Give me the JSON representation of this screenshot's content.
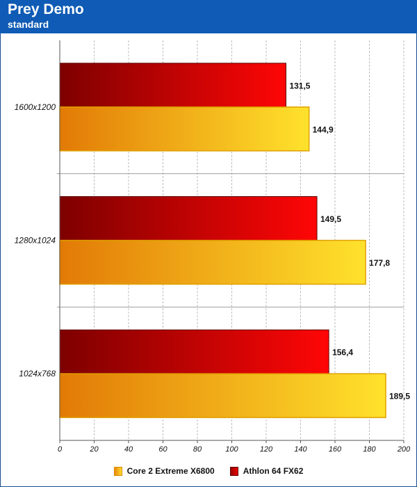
{
  "header": {
    "title": "Prey Demo",
    "subtitle": "standard"
  },
  "colors": {
    "header_bg": "#0f5bb5",
    "core_start": "#e27a06",
    "core_end": "#ffe22c",
    "athlon_start": "#7e0000",
    "athlon_end": "#ff0606"
  },
  "chart_data": {
    "type": "bar",
    "orientation": "horizontal",
    "title": "Prey Demo",
    "subtitle": "standard",
    "categories": [
      "1600x1200",
      "1280x1024",
      "1024x768"
    ],
    "series": [
      {
        "name": "Athlon 64 FX62",
        "values": [
          131.5,
          149.5,
          156.4
        ],
        "labels": [
          "131,5",
          "149,5",
          "156,4"
        ]
      },
      {
        "name": "Core 2 Extreme X6800",
        "values": [
          144.9,
          177.8,
          189.5
        ],
        "labels": [
          "144,9",
          "177,8",
          "189,5"
        ]
      }
    ],
    "xlim": [
      0,
      200
    ],
    "xticks": [
      0,
      20,
      40,
      60,
      80,
      100,
      120,
      140,
      160,
      180,
      200
    ],
    "grid": "vertical",
    "legend": {
      "position": "bottom",
      "entries": [
        "Core 2 Extreme X6800",
        "Athlon 64 FX62"
      ]
    }
  }
}
